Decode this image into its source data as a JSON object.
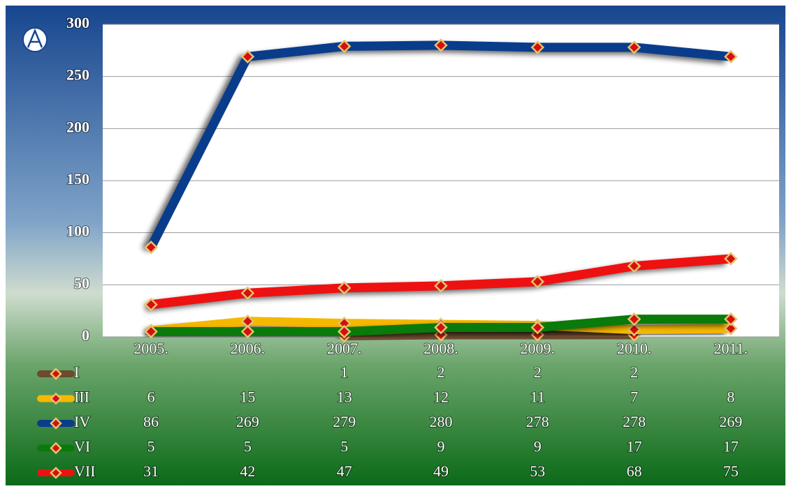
{
  "chart_data": {
    "type": "line",
    "categories": [
      "2005.",
      "2006.",
      "2007.",
      "2008.",
      "2009.",
      "2010.",
      "2011."
    ],
    "series": [
      {
        "name": "I",
        "color": "#6b4a2e",
        "values": [
          null,
          null,
          1,
          2,
          2,
          2,
          null
        ]
      },
      {
        "name": "III",
        "color": "#f5b800",
        "values": [
          6,
          15,
          13,
          12,
          11,
          7,
          8
        ]
      },
      {
        "name": "IV",
        "color": "#0a3c8c",
        "values": [
          86,
          269,
          279,
          280,
          278,
          278,
          269
        ]
      },
      {
        "name": "VI",
        "color": "#0a7a0a",
        "values": [
          5,
          5,
          5,
          9,
          9,
          17,
          17
        ]
      },
      {
        "name": "VII",
        "color": "#ee1111",
        "values": [
          31,
          42,
          47,
          49,
          53,
          68,
          75
        ]
      }
    ],
    "ylim": [
      0,
      300
    ],
    "yticks": [
      0,
      50,
      100,
      150,
      200,
      250,
      300
    ],
    "grid": true
  }
}
